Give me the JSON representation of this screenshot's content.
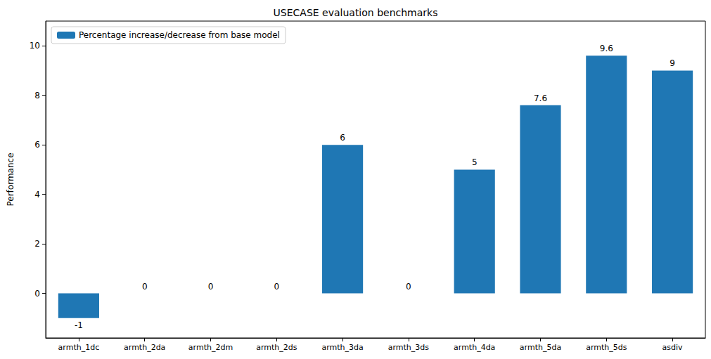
{
  "chart_data": {
    "type": "bar",
    "title": "USECASE evaluation benchmarks",
    "y_label": "Performance",
    "categories": [
      "armth_1dc",
      "armth_2da",
      "armth_2dm",
      "armth_2ds",
      "armth_3da",
      "armth_3ds",
      "armth_4da",
      "armth_5da",
      "armth_5ds",
      "asdiv"
    ],
    "series": [
      {
        "name": "Percentage increase/decrease from base model",
        "color": "#1f77b4",
        "values": [
          -1,
          0,
          0,
          0,
          6,
          0,
          5,
          7.6,
          9.6,
          9
        ]
      }
    ],
    "ylim": [
      -1.8,
      11
    ],
    "yticks": [
      0,
      2,
      4,
      6,
      8,
      10
    ],
    "grid": false,
    "legend": "upper left",
    "data_labels": true
  }
}
